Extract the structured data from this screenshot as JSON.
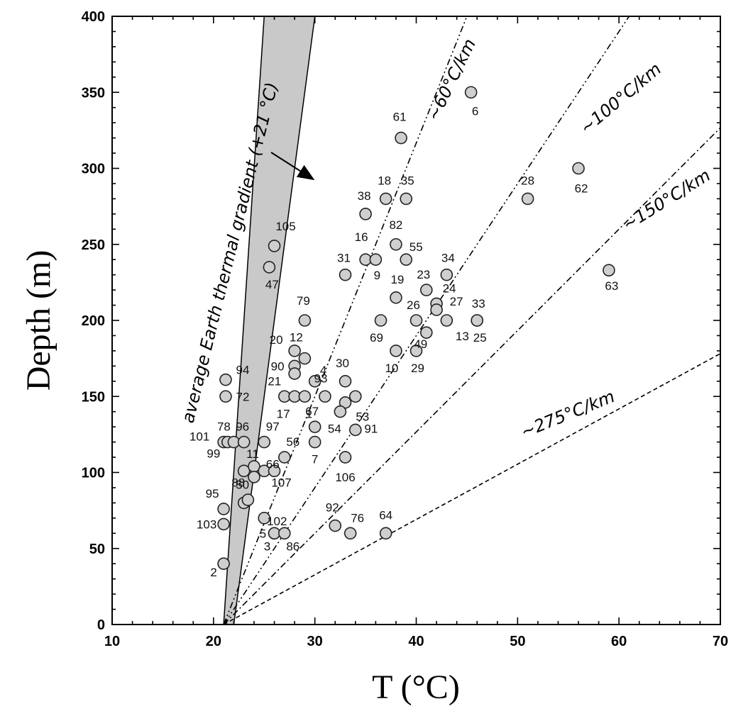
{
  "chart_data": {
    "type": "scatter",
    "xlabel": "T (°C)",
    "ylabel": "Depth (m)",
    "xlim": [
      10,
      70
    ],
    "ylim": [
      0,
      400
    ],
    "x_ticks": [
      10,
      20,
      30,
      40,
      50,
      60,
      70
    ],
    "y_ticks": [
      0,
      50,
      100,
      150,
      200,
      250,
      300,
      350,
      400
    ],
    "grid": false,
    "points": [
      {
        "label": "2",
        "x": 21.0,
        "y": 40
      },
      {
        "label": "103",
        "x": 21.0,
        "y": 66
      },
      {
        "label": "95",
        "x": 21.0,
        "y": 76
      },
      {
        "label": "72",
        "x": 21.2,
        "y": 150
      },
      {
        "label": "94",
        "x": 21.2,
        "y": 161
      },
      {
        "label": "101",
        "x": 21.0,
        "y": 120
      },
      {
        "label": "99",
        "x": 21.4,
        "y": 120
      },
      {
        "label": "78",
        "x": 22.0,
        "y": 120
      },
      {
        "label": "96",
        "x": 23.0,
        "y": 120
      },
      {
        "label": "97",
        "x": 25.0,
        "y": 120
      },
      {
        "label": "88",
        "x": 23.0,
        "y": 101
      },
      {
        "label": "11",
        "x": 24.0,
        "y": 104
      },
      {
        "label": "",
        "x": 24.0,
        "y": 97
      },
      {
        "label": "66",
        "x": 25.0,
        "y": 101
      },
      {
        "label": "107",
        "x": 26.0,
        "y": 101
      },
      {
        "label": "50",
        "x": 23.0,
        "y": 80
      },
      {
        "label": "",
        "x": 23.4,
        "y": 82
      },
      {
        "label": "102",
        "x": 25.0,
        "y": 70
      },
      {
        "label": "5",
        "x": 26.0,
        "y": 60
      },
      {
        "label": "3",
        "x": 26.0,
        "y": 60
      },
      {
        "label": "86",
        "x": 27.0,
        "y": 60
      },
      {
        "label": "56",
        "x": 27.0,
        "y": 110
      },
      {
        "label": "21",
        "x": 27.0,
        "y": 150
      },
      {
        "label": "17",
        "x": 28.0,
        "y": 150
      },
      {
        "label": "1",
        "x": 29.0,
        "y": 150
      },
      {
        "label": "90",
        "x": 28.0,
        "y": 170
      },
      {
        "label": "20",
        "x": 28.0,
        "y": 180
      },
      {
        "label": "",
        "x": 28.0,
        "y": 165
      },
      {
        "label": "12",
        "x": 29.0,
        "y": 175
      },
      {
        "label": "4",
        "x": 30.0,
        "y": 160
      },
      {
        "label": "79",
        "x": 29.0,
        "y": 200
      },
      {
        "label": "93",
        "x": 31.0,
        "y": 150
      },
      {
        "label": "67",
        "x": 30.0,
        "y": 130
      },
      {
        "label": "7",
        "x": 30.0,
        "y": 120
      },
      {
        "label": "105",
        "x": 26.0,
        "y": 249
      },
      {
        "label": "47",
        "x": 25.5,
        "y": 235
      },
      {
        "label": "30",
        "x": 33.0,
        "y": 160
      },
      {
        "label": "",
        "x": 33.0,
        "y": 146
      },
      {
        "label": "53",
        "x": 34.0,
        "y": 150
      },
      {
        "label": "54",
        "x": 32.5,
        "y": 140
      },
      {
        "label": "91",
        "x": 34.0,
        "y": 128
      },
      {
        "label": "106",
        "x": 33.0,
        "y": 110
      },
      {
        "label": "92",
        "x": 32.0,
        "y": 65
      },
      {
        "label": "76",
        "x": 33.5,
        "y": 60
      },
      {
        "label": "64",
        "x": 37.0,
        "y": 60
      },
      {
        "label": "31",
        "x": 33.0,
        "y": 230
      },
      {
        "label": "16",
        "x": 35.0,
        "y": 240
      },
      {
        "label": "9",
        "x": 36.0,
        "y": 240
      },
      {
        "label": "38",
        "x": 35.0,
        "y": 270
      },
      {
        "label": "18",
        "x": 37.0,
        "y": 280
      },
      {
        "label": "35",
        "x": 39.0,
        "y": 280
      },
      {
        "label": "61",
        "x": 38.5,
        "y": 320
      },
      {
        "label": "82",
        "x": 38.0,
        "y": 250
      },
      {
        "label": "55",
        "x": 39.0,
        "y": 240
      },
      {
        "label": "19",
        "x": 38.0,
        "y": 215
      },
      {
        "label": "69",
        "x": 36.5,
        "y": 200
      },
      {
        "label": "26",
        "x": 40.0,
        "y": 200
      },
      {
        "label": "49",
        "x": 41.0,
        "y": 192
      },
      {
        "label": "10",
        "x": 38.0,
        "y": 180
      },
      {
        "label": "29",
        "x": 40.0,
        "y": 180
      },
      {
        "label": "23",
        "x": 41.0,
        "y": 220
      },
      {
        "label": "24",
        "x": 42.0,
        "y": 211
      },
      {
        "label": "27",
        "x": 42.0,
        "y": 207
      },
      {
        "label": "34",
        "x": 43.0,
        "y": 230
      },
      {
        "label": "13",
        "x": 43.0,
        "y": 200
      },
      {
        "label": "33",
        "x": 46.0,
        "y": 200
      },
      {
        "label": "25",
        "x": 46.0,
        "y": 200
      },
      {
        "label": "6",
        "x": 45.4,
        "y": 350
      },
      {
        "label": "28",
        "x": 51.0,
        "y": 280
      },
      {
        "label": "62",
        "x": 56.0,
        "y": 300
      },
      {
        "label": "63",
        "x": 59.0,
        "y": 233
      }
    ],
    "gradient_lines": [
      {
        "label": "~60°C/km",
        "t0": 21,
        "gradient": 60
      },
      {
        "label": "~100°C/km",
        "t0": 21,
        "gradient": 100
      },
      {
        "label": "~150°C/km",
        "t0": 21,
        "gradient": 150
      },
      {
        "label": "~275°C/km",
        "t0": 21,
        "gradient": 275
      }
    ],
    "band": {
      "label": "average Earth thermal gradient (+21 °C)",
      "bottom": [
        [
          21,
          0
        ],
        [
          22,
          0
        ]
      ],
      "top": [
        [
          25,
          400
        ],
        [
          30,
          400
        ]
      ]
    }
  },
  "annotations": {
    "band_text": "average Earth  thermal gradient (+21 °C)",
    "g60": "~60°C/km",
    "g100": "~100°C/km",
    "g150": "~150°C/km",
    "g275": "~275°C/km"
  }
}
